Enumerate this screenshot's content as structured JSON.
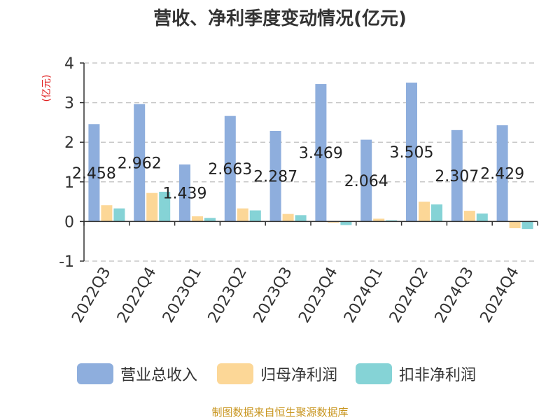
{
  "chart_data": {
    "type": "bar",
    "title": "营收、净利季度变动情况(亿元)",
    "ylabel": "(亿元)",
    "xlabel": "",
    "ylim": [
      -1,
      4
    ],
    "yticks": [
      -1,
      0,
      1,
      2,
      3,
      4
    ],
    "grid": true,
    "legend_position": "bottom",
    "categories": [
      "2022Q3",
      "2022Q4",
      "2023Q1",
      "2023Q2",
      "2023Q3",
      "2023Q4",
      "2024Q1",
      "2024Q2",
      "2024Q3",
      "2024Q4"
    ],
    "series": [
      {
        "name": "营业总收入",
        "color": "#8eaedd",
        "values": [
          2.458,
          2.962,
          1.439,
          2.663,
          2.287,
          3.469,
          2.064,
          3.505,
          2.307,
          2.429
        ],
        "labels": [
          "2.458",
          "2.962",
          "1.439",
          "2.663",
          "2.287",
          "3.469",
          "2.064",
          "3.505",
          "2.307",
          "2.429"
        ]
      },
      {
        "name": "归母净利润",
        "color": "#fcd797",
        "values": [
          0.41,
          0.72,
          0.13,
          0.33,
          0.19,
          -0.03,
          0.07,
          0.5,
          0.27,
          -0.17
        ]
      },
      {
        "name": "扣非净利润",
        "color": "#85d3d6",
        "values": [
          0.33,
          0.75,
          0.09,
          0.28,
          0.16,
          -0.09,
          0.03,
          0.43,
          0.2,
          -0.19
        ]
      }
    ]
  },
  "source": "制图数据来自恒生聚源数据库"
}
